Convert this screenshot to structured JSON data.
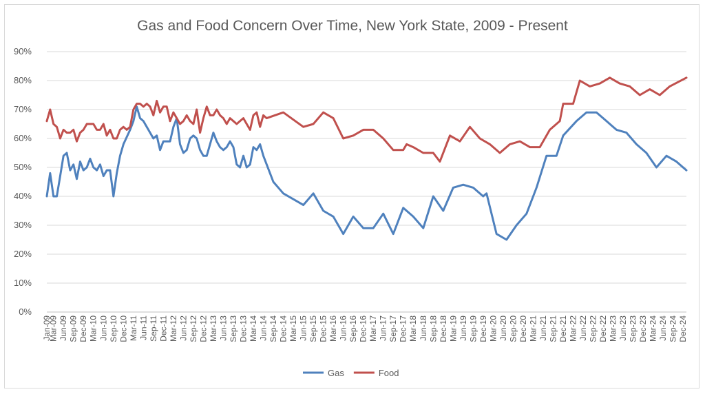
{
  "chart_data": {
    "type": "line",
    "title": "Gas and Food Concern Over Time, New York State, 2009 - Present",
    "xlabel": "",
    "ylabel": "",
    "ylim": [
      0,
      0.9
    ],
    "yticks": [
      "0%",
      "10%",
      "20%",
      "30%",
      "40%",
      "50%",
      "60%",
      "70%",
      "80%",
      "90%"
    ],
    "grid": "horizontal",
    "legend_position": "bottom",
    "x_tick_labels": [
      "Jan-09",
      "Mar-09",
      "Jun-09",
      "Sep-09",
      "Dec-09",
      "Mar-10",
      "Jun-10",
      "Sep-10",
      "Dec-10",
      "Mar-11",
      "Jun-11",
      "Sep-11",
      "Dec-11",
      "Mar-12",
      "Jun-12",
      "Sep-12",
      "Dec-12",
      "Mar-13",
      "Jun-13",
      "Sep-13",
      "Dec-13",
      "Mar-14",
      "Jun-14",
      "Sep-14",
      "Dec-14",
      "Mar-15",
      "Jun-15",
      "Sep-15",
      "Dec-15",
      "Mar-16",
      "Jun-16",
      "Sep-16",
      "Dec-16",
      "Mar-17",
      "Jun-17",
      "Sep-17",
      "Dec-17",
      "Mar-18",
      "Jun-18",
      "Sep-18",
      "Dec-18",
      "Mar-19",
      "Jun-19",
      "Sep-19",
      "Dec-19",
      "Mar-20",
      "Jun-20",
      "Sep-20",
      "Dec-20",
      "Mar-21",
      "Jun-21",
      "Sep-21",
      "Dec-21",
      "Mar-22",
      "Jun-22",
      "Sep-22",
      "Dec-22",
      "Mar-23",
      "Jun-23",
      "Sep-23",
      "Dec-23",
      "Mar-24",
      "Jun-24",
      "Sep-24",
      "Dec-24"
    ],
    "series": [
      {
        "name": "Gas",
        "color": "#4f81bd",
        "points": [
          [
            "Jan-09",
            0.4
          ],
          [
            "Feb-09",
            0.48
          ],
          [
            "Mar-09",
            0.4
          ],
          [
            "Apr-09",
            0.4
          ],
          [
            "May-09",
            0.47
          ],
          [
            "Jun-09",
            0.54
          ],
          [
            "Jul-09",
            0.55
          ],
          [
            "Aug-09",
            0.49
          ],
          [
            "Sep-09",
            0.51
          ],
          [
            "Oct-09",
            0.46
          ],
          [
            "Nov-09",
            0.52
          ],
          [
            "Dec-09",
            0.49
          ],
          [
            "Jan-10",
            0.5
          ],
          [
            "Feb-10",
            0.53
          ],
          [
            "Mar-10",
            0.5
          ],
          [
            "Apr-10",
            0.49
          ],
          [
            "May-10",
            0.51
          ],
          [
            "Jun-10",
            0.47
          ],
          [
            "Jul-10",
            0.49
          ],
          [
            "Aug-10",
            0.49
          ],
          [
            "Sep-10",
            0.4
          ],
          [
            "Oct-10",
            0.48
          ],
          [
            "Nov-10",
            0.54
          ],
          [
            "Dec-10",
            0.58
          ],
          [
            "Feb-11",
            0.63
          ],
          [
            "Mar-11",
            0.66
          ],
          [
            "Apr-11",
            0.71
          ],
          [
            "May-11",
            0.67
          ],
          [
            "Jun-11",
            0.66
          ],
          [
            "Aug-11",
            0.62
          ],
          [
            "Sep-11",
            0.6
          ],
          [
            "Oct-11",
            0.61
          ],
          [
            "Nov-11",
            0.56
          ],
          [
            "Dec-11",
            0.59
          ],
          [
            "Feb-12",
            0.59
          ],
          [
            "Mar-12",
            0.64
          ],
          [
            "Apr-12",
            0.67
          ],
          [
            "May-12",
            0.58
          ],
          [
            "Jun-12",
            0.55
          ],
          [
            "Jul-12",
            0.56
          ],
          [
            "Aug-12",
            0.6
          ],
          [
            "Sep-12",
            0.61
          ],
          [
            "Oct-12",
            0.6
          ],
          [
            "Nov-12",
            0.56
          ],
          [
            "Dec-12",
            0.54
          ],
          [
            "Jan-13",
            0.54
          ],
          [
            "Mar-13",
            0.62
          ],
          [
            "Apr-13",
            0.59
          ],
          [
            "May-13",
            0.57
          ],
          [
            "Jun-13",
            0.56
          ],
          [
            "Jul-13",
            0.57
          ],
          [
            "Aug-13",
            0.59
          ],
          [
            "Sep-13",
            0.57
          ],
          [
            "Oct-13",
            0.51
          ],
          [
            "Nov-13",
            0.5
          ],
          [
            "Dec-13",
            0.54
          ],
          [
            "Jan-14",
            0.5
          ],
          [
            "Feb-14",
            0.51
          ],
          [
            "Mar-14",
            0.57
          ],
          [
            "Apr-14",
            0.56
          ],
          [
            "May-14",
            0.58
          ],
          [
            "Jun-14",
            0.54
          ],
          [
            "Sep-14",
            0.45
          ],
          [
            "Dec-14",
            0.41
          ],
          [
            "Mar-15",
            0.39
          ],
          [
            "Jun-15",
            0.37
          ],
          [
            "Sep-15",
            0.41
          ],
          [
            "Dec-15",
            0.35
          ],
          [
            "Mar-16",
            0.33
          ],
          [
            "Jun-16",
            0.27
          ],
          [
            "Sep-16",
            0.33
          ],
          [
            "Dec-16",
            0.29
          ],
          [
            "Mar-17",
            0.29
          ],
          [
            "Jun-17",
            0.34
          ],
          [
            "Sep-17",
            0.27
          ],
          [
            "Dec-17",
            0.36
          ],
          [
            "Mar-18",
            0.33
          ],
          [
            "Jun-18",
            0.29
          ],
          [
            "Sep-18",
            0.4
          ],
          [
            "Dec-18",
            0.35
          ],
          [
            "Mar-19",
            0.43
          ],
          [
            "Jun-19",
            0.44
          ],
          [
            "Sep-19",
            0.43
          ],
          [
            "Dec-19",
            0.4
          ],
          [
            "Jan-20",
            0.41
          ],
          [
            "Apr-20",
            0.27
          ],
          [
            "Jul-20",
            0.25
          ],
          [
            "Oct-20",
            0.3
          ],
          [
            "Jan-21",
            0.34
          ],
          [
            "Apr-21",
            0.43
          ],
          [
            "Jul-21",
            0.54
          ],
          [
            "Oct-21",
            0.54
          ],
          [
            "Dec-21",
            0.61
          ],
          [
            "Apr-22",
            0.66
          ],
          [
            "Jul-22",
            0.69
          ],
          [
            "Oct-22",
            0.69
          ],
          [
            "Jan-23",
            0.66
          ],
          [
            "Apr-23",
            0.63
          ],
          [
            "Jul-23",
            0.62
          ],
          [
            "Oct-23",
            0.58
          ],
          [
            "Jan-24",
            0.55
          ],
          [
            "Apr-24",
            0.5
          ],
          [
            "Jul-24",
            0.54
          ],
          [
            "Oct-24",
            0.52
          ],
          [
            "Jan-25",
            0.49
          ]
        ]
      },
      {
        "name": "Food",
        "color": "#c0504d",
        "points": [
          [
            "Jan-09",
            0.66
          ],
          [
            "Feb-09",
            0.7
          ],
          [
            "Mar-09",
            0.65
          ],
          [
            "Apr-09",
            0.64
          ],
          [
            "May-09",
            0.6
          ],
          [
            "Jun-09",
            0.63
          ],
          [
            "Jul-09",
            0.62
          ],
          [
            "Aug-09",
            0.62
          ],
          [
            "Sep-09",
            0.63
          ],
          [
            "Oct-09",
            0.59
          ],
          [
            "Nov-09",
            0.62
          ],
          [
            "Dec-09",
            0.63
          ],
          [
            "Jan-10",
            0.65
          ],
          [
            "Feb-10",
            0.65
          ],
          [
            "Mar-10",
            0.65
          ],
          [
            "Apr-10",
            0.63
          ],
          [
            "May-10",
            0.63
          ],
          [
            "Jun-10",
            0.65
          ],
          [
            "Jul-10",
            0.61
          ],
          [
            "Aug-10",
            0.63
          ],
          [
            "Sep-10",
            0.6
          ],
          [
            "Oct-10",
            0.6
          ],
          [
            "Nov-10",
            0.63
          ],
          [
            "Dec-10",
            0.64
          ],
          [
            "Jan-11",
            0.63
          ],
          [
            "Feb-11",
            0.64
          ],
          [
            "Mar-11",
            0.7
          ],
          [
            "Apr-11",
            0.72
          ],
          [
            "May-11",
            0.72
          ],
          [
            "Jun-11",
            0.71
          ],
          [
            "Jul-11",
            0.72
          ],
          [
            "Aug-11",
            0.71
          ],
          [
            "Sep-11",
            0.68
          ],
          [
            "Oct-11",
            0.73
          ],
          [
            "Nov-11",
            0.69
          ],
          [
            "Dec-11",
            0.71
          ],
          [
            "Jan-12",
            0.71
          ],
          [
            "Feb-12",
            0.66
          ],
          [
            "Mar-12",
            0.69
          ],
          [
            "Apr-12",
            0.67
          ],
          [
            "May-12",
            0.65
          ],
          [
            "Jun-12",
            0.66
          ],
          [
            "Jul-12",
            0.68
          ],
          [
            "Aug-12",
            0.66
          ],
          [
            "Sep-12",
            0.65
          ],
          [
            "Oct-12",
            0.7
          ],
          [
            "Nov-12",
            0.62
          ],
          [
            "Dec-12",
            0.67
          ],
          [
            "Jan-13",
            0.71
          ],
          [
            "Feb-13",
            0.68
          ],
          [
            "Mar-13",
            0.68
          ],
          [
            "Apr-13",
            0.7
          ],
          [
            "May-13",
            0.68
          ],
          [
            "Jun-13",
            0.67
          ],
          [
            "Jul-13",
            0.65
          ],
          [
            "Aug-13",
            0.67
          ],
          [
            "Sep-13",
            0.66
          ],
          [
            "Oct-13",
            0.65
          ],
          [
            "Nov-13",
            0.66
          ],
          [
            "Dec-13",
            0.67
          ],
          [
            "Jan-14",
            0.65
          ],
          [
            "Feb-14",
            0.63
          ],
          [
            "Mar-14",
            0.68
          ],
          [
            "Apr-14",
            0.69
          ],
          [
            "May-14",
            0.64
          ],
          [
            "Jun-14",
            0.68
          ],
          [
            "Jul-14",
            0.67
          ],
          [
            "Dec-14",
            0.69
          ],
          [
            "Jun-15",
            0.64
          ],
          [
            "Sep-15",
            0.65
          ],
          [
            "Dec-15",
            0.69
          ],
          [
            "Mar-16",
            0.67
          ],
          [
            "Jun-16",
            0.6
          ],
          [
            "Sep-16",
            0.61
          ],
          [
            "Dec-16",
            0.63
          ],
          [
            "Mar-17",
            0.63
          ],
          [
            "Jun-17",
            0.6
          ],
          [
            "Sep-17",
            0.56
          ],
          [
            "Dec-17",
            0.56
          ],
          [
            "Jan-18",
            0.58
          ],
          [
            "Mar-18",
            0.57
          ],
          [
            "Jun-18",
            0.55
          ],
          [
            "Sep-18",
            0.55
          ],
          [
            "Nov-18",
            0.52
          ],
          [
            "Feb-19",
            0.61
          ],
          [
            "May-19",
            0.59
          ],
          [
            "Aug-19",
            0.64
          ],
          [
            "Nov-19",
            0.6
          ],
          [
            "Feb-20",
            0.58
          ],
          [
            "May-20",
            0.55
          ],
          [
            "Aug-20",
            0.58
          ],
          [
            "Nov-20",
            0.59
          ],
          [
            "Feb-21",
            0.57
          ],
          [
            "May-21",
            0.57
          ],
          [
            "Aug-21",
            0.63
          ],
          [
            "Nov-21",
            0.66
          ],
          [
            "Dec-21",
            0.72
          ],
          [
            "Mar-22",
            0.72
          ],
          [
            "May-22",
            0.8
          ],
          [
            "Aug-22",
            0.78
          ],
          [
            "Nov-22",
            0.79
          ],
          [
            "Feb-23",
            0.81
          ],
          [
            "May-23",
            0.79
          ],
          [
            "Aug-23",
            0.78
          ],
          [
            "Nov-23",
            0.75
          ],
          [
            "Feb-24",
            0.77
          ],
          [
            "May-24",
            0.75
          ],
          [
            "Aug-24",
            0.78
          ],
          [
            "Jan-25",
            0.81
          ]
        ]
      }
    ]
  }
}
